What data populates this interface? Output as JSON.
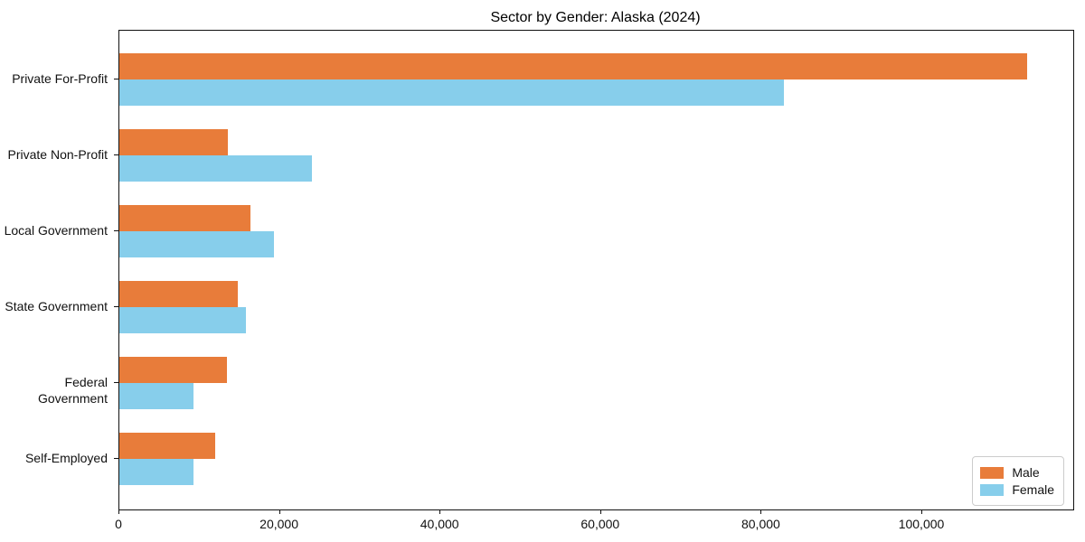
{
  "chart_data": {
    "type": "bar",
    "orientation": "horizontal",
    "title": "Sector by Gender: Alaska (2024)",
    "categories": [
      "Private For-Profit",
      "Private Non-Profit",
      "Local Government",
      "State Government",
      "Federal Government",
      "Self-Employed"
    ],
    "series": [
      {
        "name": "Male",
        "color": "#E87C3A",
        "values": [
          113000,
          13500,
          16300,
          14800,
          13400,
          11900
        ]
      },
      {
        "name": "Female",
        "color": "#87CEEB",
        "values": [
          82800,
          24000,
          19200,
          15800,
          9200,
          9200
        ]
      }
    ],
    "xlabel": "",
    "ylabel": "",
    "xlim": [
      0,
      118800
    ],
    "x_ticks": [
      0,
      20000,
      40000,
      60000,
      80000,
      100000
    ],
    "x_tick_labels": [
      "0",
      "20,000",
      "40,000",
      "60,000",
      "80,000",
      "100,000"
    ],
    "grid": false,
    "legend": {
      "position": "lower right",
      "entries": [
        {
          "label": "Male"
        },
        {
          "label": "Female"
        }
      ]
    }
  }
}
